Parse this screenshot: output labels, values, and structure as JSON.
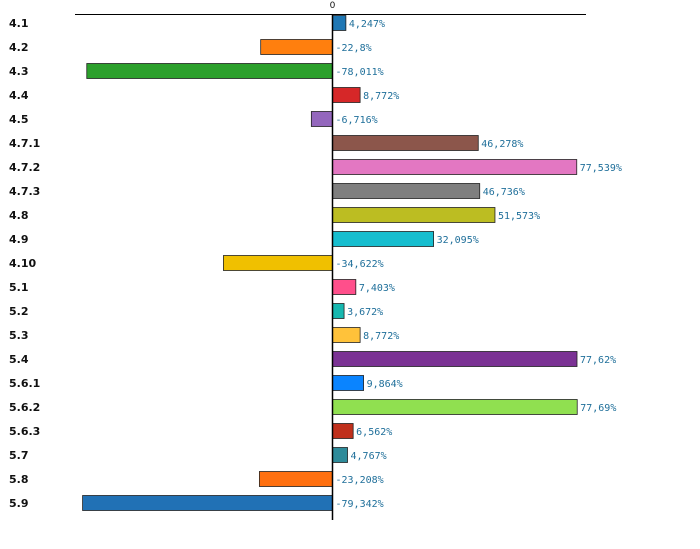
{
  "chart_data": {
    "type": "bar",
    "orientation": "horizontal",
    "zero_tick_label": "0",
    "xlim": [
      -87,
      87
    ],
    "categories": [
      "4.1",
      "4.2",
      "4.3",
      "4.4",
      "4.5",
      "4.7.1",
      "4.7.2",
      "4.7.3",
      "4.8",
      "4.9",
      "4.10",
      "5.1",
      "5.2",
      "5.3",
      "5.4",
      "5.6.1",
      "5.6.2",
      "5.6.3",
      "5.7",
      "5.8",
      "5.9"
    ],
    "values": [
      4.247,
      -22.8,
      -78.011,
      8.772,
      -6.716,
      46.278,
      77.539,
      46.736,
      51.573,
      32.095,
      -34.622,
      7.403,
      3.672,
      8.772,
      77.62,
      9.864,
      77.69,
      6.562,
      4.767,
      -23.208,
      -79.342
    ],
    "value_labels": [
      "4,247%",
      "-22,8%",
      "-78,011%",
      "8,772%",
      "-6,716%",
      "46,278%",
      "77,539%",
      "46,736%",
      "51,573%",
      "32,095%",
      "-34,622%",
      "7,403%",
      "3,672%",
      "8,772%",
      "77,62%",
      "9,864%",
      "77,69%",
      "6,562%",
      "4,767%",
      "-23,208%",
      "-79,342%"
    ],
    "colors": [
      "#1f77b4",
      "#ff7f0e",
      "#2ca02c",
      "#d62728",
      "#9467bd",
      "#8c564b",
      "#e377c2",
      "#7f7f7f",
      "#bcbd22",
      "#17becf",
      "#f0c000",
      "#ff4f8b",
      "#17b8b0",
      "#ffc23a",
      "#7b3294",
      "#0a84ff",
      "#90e050",
      "#c0301c",
      "#2e8b9a",
      "#ff7010",
      "#2171b5"
    ],
    "grid": false,
    "legend": "none",
    "title": "",
    "xlabel": "",
    "ylabel": ""
  }
}
